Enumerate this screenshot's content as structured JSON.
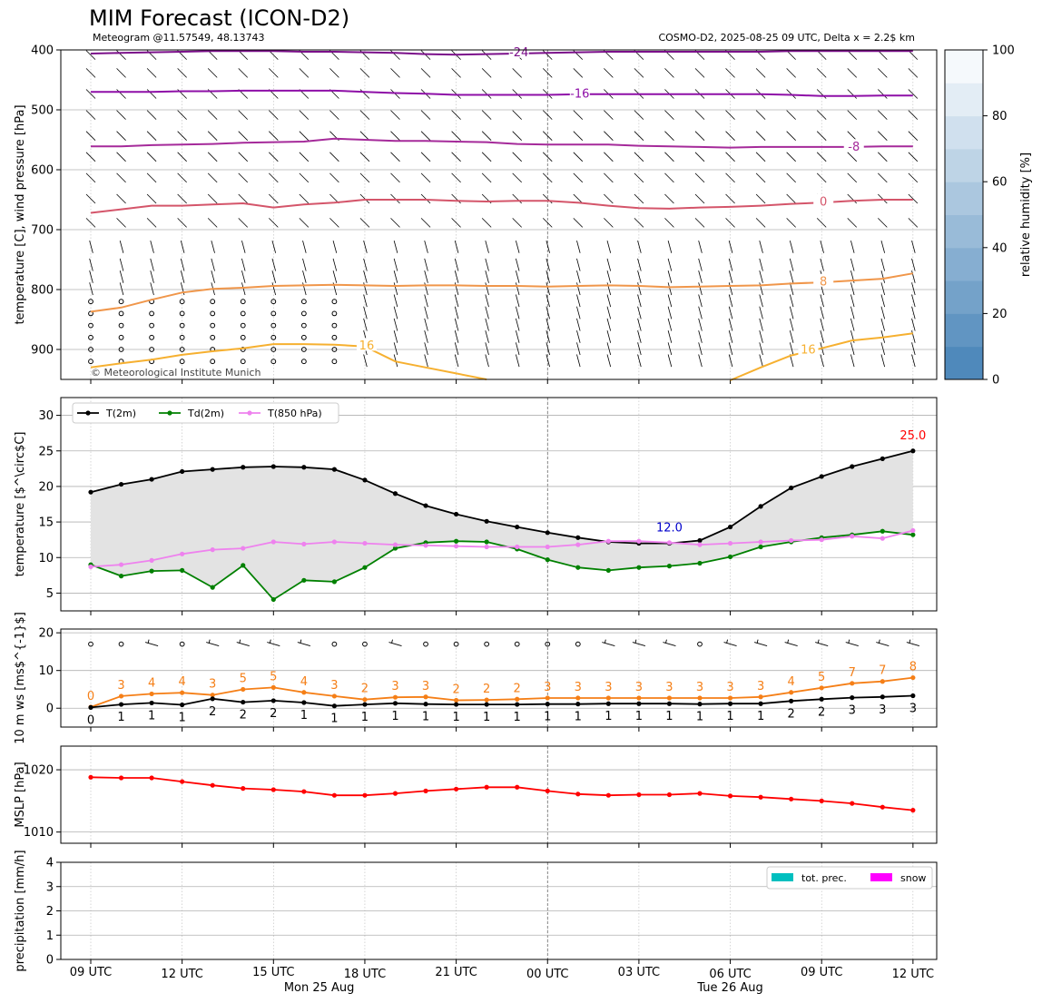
{
  "title": "MIM Forecast (ICON-D2)",
  "subtitle_left": "Meteogram @11.57549, 48.13743",
  "subtitle_right": "COSMO-D2, 2025-08-25 09 UTC, Delta x = 2.2$ km",
  "copyright": "© Meteorological Institute Munich",
  "x_ticks": [
    "09 UTC",
    "12 UTC",
    "15 UTC",
    "18 UTC",
    "21 UTC",
    "00 UTC",
    "03 UTC",
    "06 UTC",
    "09 UTC",
    "12 UTC"
  ],
  "x_dates": [
    "Mon 25 Aug",
    "Tue 26 Aug"
  ],
  "colorbar": {
    "label": "relative humidity [%]",
    "ticks": [
      "0",
      "20",
      "40",
      "60",
      "80",
      "100"
    ],
    "range": [
      0,
      100
    ]
  },
  "chart_data": [
    {
      "id": "profile",
      "type": "line",
      "ylabel": "temperature [C], wind pressure [hPa]",
      "ylim": [
        950,
        400
      ],
      "y_ticks": [
        "400",
        "500",
        "600",
        "700",
        "800",
        "900"
      ],
      "hours": [
        0,
        1,
        2,
        3,
        4,
        5,
        6,
        7,
        8,
        9,
        10,
        11,
        12,
        13,
        14,
        15,
        16,
        17,
        18,
        19,
        20,
        21,
        22,
        23,
        24,
        25,
        26,
        27
      ],
      "isotherms": [
        {
          "label": "-24",
          "color": "#7b0f8a",
          "p": [
            406,
            405,
            404,
            403,
            402,
            402,
            402,
            403,
            403,
            404,
            405,
            407,
            408,
            407,
            406,
            405,
            404,
            403,
            403,
            403,
            403,
            403,
            403,
            402,
            402,
            402,
            402,
            402
          ]
        },
        {
          "label": "-16",
          "color": "#8e0fa7",
          "p": [
            470,
            470,
            470,
            469,
            469,
            468,
            468,
            468,
            468,
            470,
            472,
            473,
            475,
            475,
            475,
            475,
            474,
            474,
            474,
            474,
            474,
            474,
            474,
            475,
            477,
            477,
            476,
            476
          ]
        },
        {
          "label": "-8",
          "color": "#a52a9a",
          "p": [
            561,
            561,
            559,
            558,
            557,
            555,
            554,
            553,
            548,
            550,
            552,
            552,
            553,
            554,
            557,
            558,
            558,
            558,
            560,
            561,
            562,
            563,
            562,
            562,
            562,
            562,
            561,
            561
          ]
        },
        {
          "label": "0",
          "color": "#d4556a",
          "p": [
            672,
            666,
            660,
            660,
            658,
            656,
            663,
            658,
            655,
            650,
            650,
            650,
            652,
            653,
            652,
            652,
            655,
            660,
            664,
            665,
            663,
            662,
            660,
            657,
            655,
            652,
            650,
            650
          ]
        },
        {
          "label": "8",
          "color": "#f0964a",
          "p": [
            837,
            830,
            817,
            805,
            799,
            797,
            794,
            793,
            792,
            793,
            794,
            793,
            793,
            794,
            794,
            795,
            794,
            793,
            794,
            796,
            795,
            794,
            793,
            790,
            788,
            785,
            782,
            773
          ]
        },
        {
          "label": "16",
          "color": "#f6b030",
          "p": [
            930,
            923,
            917,
            909,
            903,
            898,
            891,
            891,
            892,
            895,
            920,
            930,
            940,
            950,
            null,
            null,
            null,
            null,
            null,
            null,
            null,
            952,
            930,
            910,
            898,
            885,
            880,
            873
          ]
        }
      ]
    },
    {
      "id": "temperature",
      "type": "line",
      "ylabel": "temperature [$^\\circ$C]",
      "ylim": [
        2.5,
        32.5
      ],
      "y_ticks": [
        "5",
        "10",
        "15",
        "20",
        "25",
        "30"
      ],
      "hours": [
        0,
        1,
        2,
        3,
        4,
        5,
        6,
        7,
        8,
        9,
        10,
        11,
        12,
        13,
        14,
        15,
        16,
        17,
        18,
        19,
        20,
        21,
        22,
        23,
        24,
        25,
        26,
        27
      ],
      "series": [
        {
          "name": "T(2m)",
          "color": "#000000",
          "values": [
            19.2,
            20.3,
            21.0,
            22.1,
            22.4,
            22.7,
            22.8,
            22.7,
            22.4,
            20.9,
            19.0,
            17.3,
            16.1,
            15.1,
            14.3,
            13.5,
            12.8,
            12.2,
            12.0,
            12.0,
            12.4,
            14.3,
            17.2,
            19.8,
            21.4,
            22.8,
            23.9,
            25.0
          ]
        },
        {
          "name": "Td(2m)",
          "color": "#008000",
          "values": [
            9.0,
            7.4,
            8.1,
            8.2,
            5.8,
            8.9,
            4.1,
            6.8,
            6.6,
            8.6,
            11.3,
            12.1,
            12.3,
            12.2,
            11.2,
            9.7,
            8.6,
            8.2,
            8.6,
            8.8,
            9.2,
            10.1,
            11.5,
            12.2,
            12.8,
            13.2,
            13.7,
            13.2
          ]
        },
        {
          "name": "T(850 hPa)",
          "color": "#ee82ee",
          "values": [
            8.7,
            9.0,
            9.6,
            10.5,
            11.1,
            11.3,
            12.2,
            11.9,
            12.2,
            12.0,
            11.8,
            11.7,
            11.6,
            11.5,
            11.5,
            11.5,
            11.8,
            12.3,
            12.3,
            12.1,
            11.8,
            12.0,
            12.2,
            12.4,
            12.5,
            13.0,
            12.7,
            13.8
          ]
        }
      ],
      "annotations": [
        {
          "text": "25.0",
          "hour": 27,
          "value": 25.0,
          "color": "#ff0000"
        },
        {
          "text": "12.0",
          "hour": 19,
          "value": 12.0,
          "color": "#0000cc"
        }
      ]
    },
    {
      "id": "wind",
      "type": "line",
      "ylabel": "10 m ws [ms$^{-1}$]",
      "ylim": [
        -5,
        21
      ],
      "y_ticks": [
        "0",
        "10",
        "20"
      ],
      "hours": [
        0,
        1,
        2,
        3,
        4,
        5,
        6,
        7,
        8,
        9,
        10,
        11,
        12,
        13,
        14,
        15,
        16,
        17,
        18,
        19,
        20,
        21,
        22,
        23,
        24,
        25,
        26,
        27
      ],
      "series": [
        {
          "name": "gust",
          "color": "#f57f17",
          "values": [
            0.3,
            3.2,
            3.8,
            4.1,
            3.5,
            5.0,
            5.5,
            4.2,
            3.2,
            2.3,
            2.9,
            3.0,
            2.1,
            2.2,
            2.4,
            2.7,
            2.7,
            2.7,
            2.7,
            2.7,
            2.7,
            2.7,
            3.0,
            4.2,
            5.4,
            6.6,
            7.1,
            8.1
          ],
          "labels": [
            "0",
            "3",
            "4",
            "4",
            "3",
            "5",
            "5",
            "4",
            "3",
            "2",
            "3",
            "3",
            "2",
            "2",
            "2",
            "3",
            "3",
            "3",
            "3",
            "3",
            "3",
            "3",
            "3",
            "4",
            "5",
            "7",
            "7",
            "8"
          ]
        },
        {
          "name": "mean",
          "color": "#000000",
          "values": [
            0.2,
            1.0,
            1.4,
            0.9,
            2.5,
            1.6,
            2.0,
            1.5,
            0.6,
            1.0,
            1.3,
            1.1,
            1.0,
            1.0,
            1.0,
            1.1,
            1.1,
            1.2,
            1.2,
            1.2,
            1.1,
            1.2,
            1.2,
            1.9,
            2.4,
            2.8,
            3.0,
            3.3
          ],
          "labels": [
            "0",
            "1",
            "1",
            "1",
            "2",
            "2",
            "2",
            "1",
            "1",
            "1",
            "1",
            "1",
            "1",
            "1",
            "1",
            "1",
            "1",
            "1",
            "1",
            "1",
            "1",
            "1",
            "1",
            "2",
            "2",
            "3",
            "3",
            "3"
          ]
        }
      ]
    },
    {
      "id": "mslp",
      "type": "line",
      "ylabel": "MSLP [hPa]",
      "ylim": [
        1008.2,
        1023.8
      ],
      "y_ticks": [
        "1010",
        "1020"
      ],
      "hours": [
        0,
        1,
        2,
        3,
        4,
        5,
        6,
        7,
        8,
        9,
        10,
        11,
        12,
        13,
        14,
        15,
        16,
        17,
        18,
        19,
        20,
        21,
        22,
        23,
        24,
        25,
        26,
        27
      ],
      "series": [
        {
          "name": "MSLP",
          "color": "#ff0000",
          "values": [
            1018.8,
            1018.7,
            1018.7,
            1018.1,
            1017.5,
            1017.0,
            1016.8,
            1016.5,
            1015.9,
            1015.9,
            1016.2,
            1016.6,
            1016.9,
            1017.2,
            1017.2,
            1016.6,
            1016.1,
            1015.9,
            1016.0,
            1016.0,
            1016.2,
            1015.8,
            1015.6,
            1015.3,
            1015.0,
            1014.6,
            1014.0,
            1013.5
          ]
        }
      ]
    },
    {
      "id": "precip",
      "type": "bar",
      "ylabel": "precipitation [mm/h]",
      "ylim": [
        0,
        4
      ],
      "y_ticks": [
        "0",
        "1",
        "2",
        "3",
        "4"
      ],
      "series": [
        {
          "name": "tot. prec.",
          "color": "#00bfbf",
          "values": []
        },
        {
          "name": "snow",
          "color": "#ff00ff",
          "values": []
        }
      ]
    }
  ]
}
